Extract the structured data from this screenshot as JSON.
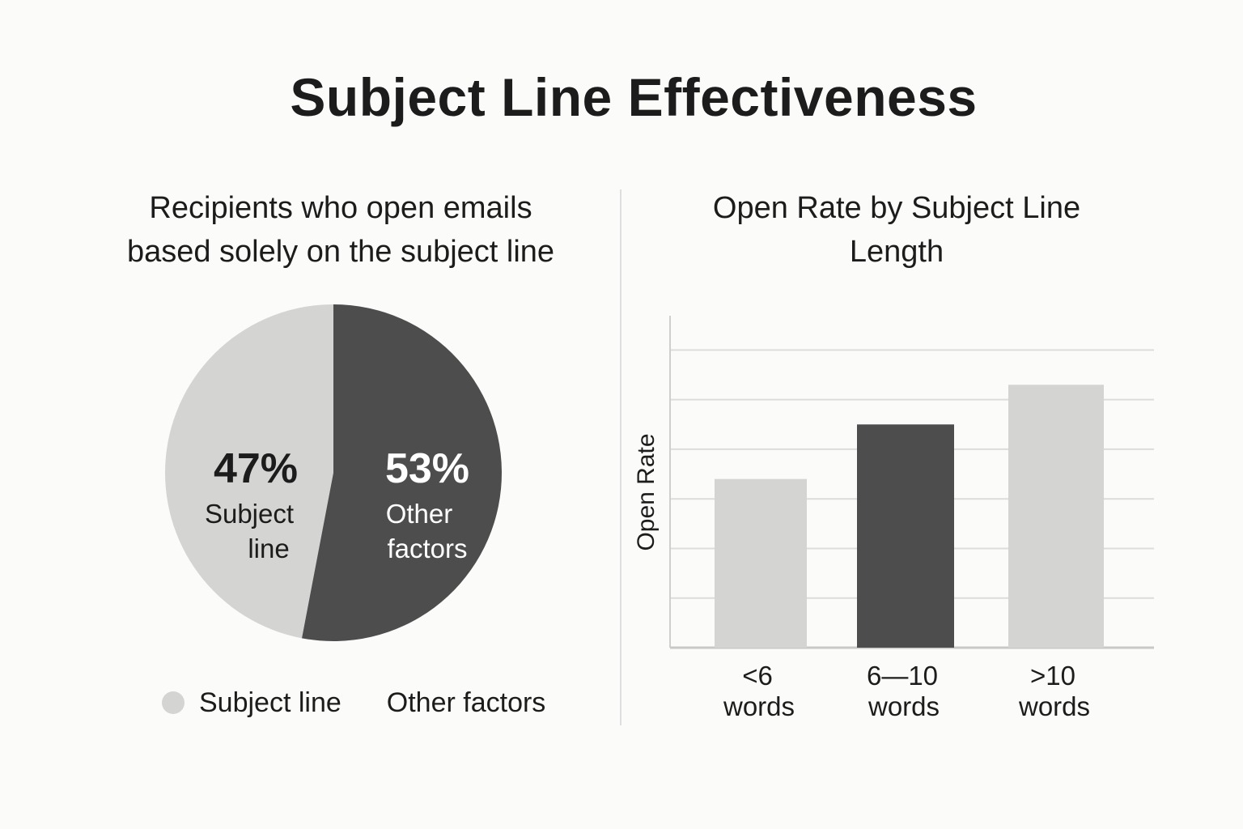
{
  "title": "Subject Line Effectiveness",
  "chart_data": [
    {
      "type": "pie",
      "title_lines": [
        "Recipients who open emails",
        "based solely on the subject line"
      ],
      "slices": [
        {
          "label_lines": [
            "Subject",
            "line"
          ],
          "value": 47,
          "value_label": "47%",
          "color": "#d4d4d2",
          "text_color": "#1c1c1c"
        },
        {
          "label_lines": [
            "Other",
            "factors"
          ],
          "value": 53,
          "value_label": "53%",
          "color": "#4d4d4d",
          "text_color": "#ffffff"
        }
      ],
      "legend": {
        "placement": "bottom",
        "items": [
          {
            "label": "Subject line",
            "color": "#d4d4d2"
          },
          {
            "label": "Other factors",
            "color": ""
          }
        ]
      }
    },
    {
      "type": "bar",
      "title_lines": [
        "Open Rate by Subject Line",
        "Length"
      ],
      "ylabel": "Open Rate",
      "xlabel": "",
      "ylim": [
        0,
        6.3
      ],
      "grid": true,
      "categories": [
        {
          "label_lines": [
            "<6",
            "words"
          ]
        },
        {
          "label_lines": [
            "6—10",
            "words"
          ]
        },
        {
          "label_lines": [
            ">10",
            "words"
          ]
        }
      ],
      "values": [
        3.4,
        4.5,
        5.3
      ],
      "colors": [
        "#d4d4d2",
        "#4d4d4d",
        "#d4d4d2"
      ]
    }
  ]
}
